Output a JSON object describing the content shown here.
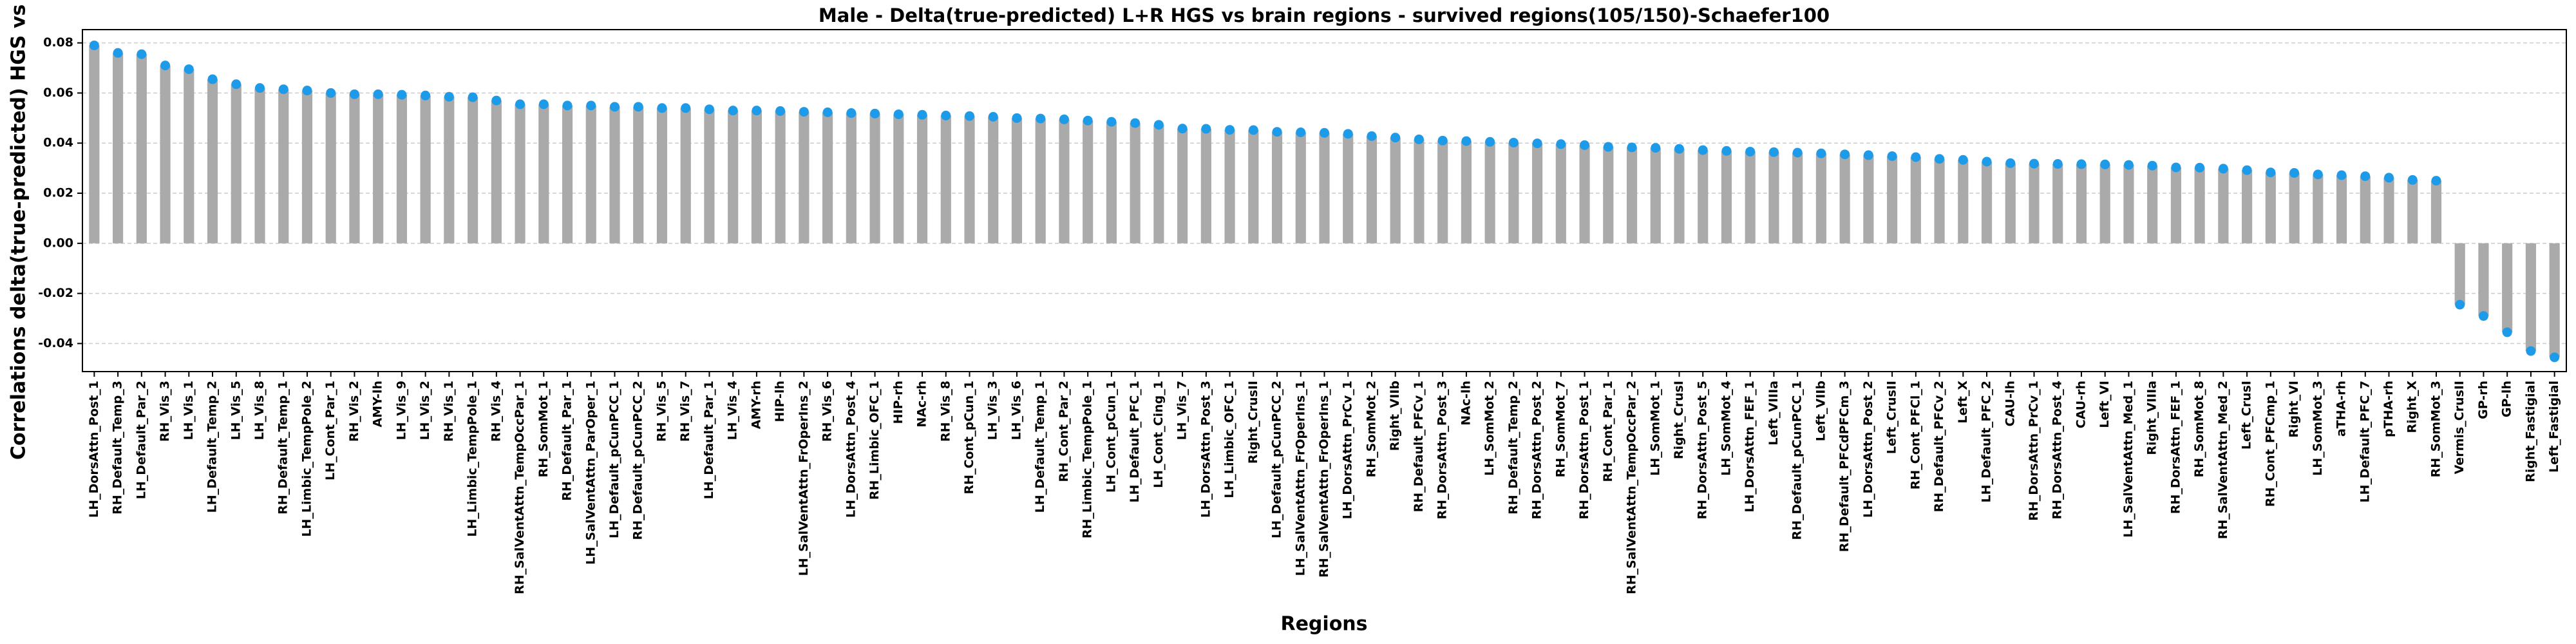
{
  "chart_data": {
    "type": "lollipop",
    "title": "Male - Delta(true-predicted) L+R HGS vs brain regions - survived regions(105/150)-Schaefer100",
    "xlabel": "Regions",
    "ylabel": "Correlations delta(true-predicted) HGS vs brain",
    "categories": [
      "LH_DorsAttn_Post_1",
      "RH_Default_Temp_3",
      "LH_Default_Par_2",
      "RH_Vis_3",
      "LH_Vis_1",
      "LH_Default_Temp_2",
      "LH_Vis_5",
      "LH_Vis_8",
      "RH_Default_Temp_1",
      "LH_Limbic_TempPole_2",
      "LH_Cont_Par_1",
      "RH_Vis_2",
      "AMY-lh",
      "LH_Vis_9",
      "LH_Vis_2",
      "RH_Vis_1",
      "LH_Limbic_TempPole_1",
      "RH_Vis_4",
      "RH_SalVentAttn_TempOccPar_1",
      "RH_SomMot_1",
      "RH_Default_Par_1",
      "LH_SalVentAttn_ParOper_1",
      "LH_Default_pCunPCC_1",
      "RH_Default_pCunPCC_2",
      "RH_Vis_5",
      "RH_Vis_7",
      "LH_Default_Par_1",
      "LH_Vis_4",
      "AMY-rh",
      "HIP-lh",
      "LH_SalVentAttn_FrOperIns_2",
      "RH_Vis_6",
      "LH_DorsAttn_Post_4",
      "RH_Limbic_OFC_1",
      "HIP-rh",
      "NAc-rh",
      "RH_Vis_8",
      "RH_Cont_pCun_1",
      "LH_Vis_3",
      "LH_Vis_6",
      "LH_Default_Temp_1",
      "RH_Cont_Par_2",
      "RH_Limbic_TempPole_1",
      "LH_Cont_pCun_1",
      "LH_Default_PFC_1",
      "LH_Cont_Cing_1",
      "LH_Vis_7",
      "LH_DorsAttn_Post_3",
      "LH_Limbic_OFC_1",
      "Right_CrusII",
      "LH_Default_pCunPCC_2",
      "LH_SalVentAttn_FrOperIns_1",
      "RH_SalVentAttn_FrOperIns_1",
      "LH_DorsAttn_PrCv_1",
      "RH_SomMot_2",
      "Right_VIIb",
      "RH_Default_PFCv_1",
      "RH_DorsAttn_Post_3",
      "NAc-lh",
      "LH_SomMot_2",
      "RH_Default_Temp_2",
      "RH_DorsAttn_Post_2",
      "RH_SomMot_7",
      "RH_DorsAttn_Post_1",
      "RH_Cont_Par_1",
      "RH_SalVentAttn_TempOccPar_2",
      "LH_SomMot_1",
      "Right_CrusI",
      "RH_DorsAttn_Post_5",
      "LH_SomMot_4",
      "LH_DorsAttn_FEF_1",
      "Left_VIIIa",
      "RH_Default_pCunPCC_1",
      "Left_VIIb",
      "RH_Default_PFCdPFCm_3",
      "LH_DorsAttn_Post_2",
      "Left_CrusII",
      "RH_Cont_PFCl_1",
      "RH_Default_PFCv_2",
      "Left_X",
      "LH_Default_PFC_2",
      "CAU-lh",
      "RH_DorsAttn_PrCv_1",
      "RH_DorsAttn_Post_4",
      "CAU-rh",
      "Left_VI",
      "LH_SalVentAttn_Med_1",
      "Right_VIIIa",
      "RH_DorsAttn_FEF_1",
      "RH_SomMot_8",
      "RH_SalVentAttn_Med_2",
      "Left_CrusI",
      "RH_Cont_PFCmp_1",
      "Right_VI",
      "LH_SomMot_3",
      "aTHA-rh",
      "LH_Default_PFC_7",
      "pTHA-rh",
      "Right_X",
      "RH_SomMot_3",
      "Vermis_CrusII",
      "GP-rh",
      "GP-lh",
      "Right_Fastigial",
      "Left_Fastigial"
    ],
    "values": [
      0.079,
      0.076,
      0.0755,
      0.071,
      0.0695,
      0.0655,
      0.0635,
      0.062,
      0.0615,
      0.061,
      0.06,
      0.0595,
      0.0595,
      0.0593,
      0.059,
      0.0585,
      0.0583,
      0.057,
      0.0555,
      0.0555,
      0.055,
      0.055,
      0.0545,
      0.0545,
      0.054,
      0.054,
      0.0535,
      0.053,
      0.053,
      0.0528,
      0.0525,
      0.0523,
      0.052,
      0.0518,
      0.0515,
      0.0513,
      0.051,
      0.0508,
      0.0505,
      0.05,
      0.0498,
      0.0495,
      0.049,
      0.0485,
      0.048,
      0.0473,
      0.0458,
      0.0457,
      0.0453,
      0.0452,
      0.0445,
      0.0443,
      0.0441,
      0.0437,
      0.0428,
      0.0422,
      0.0415,
      0.041,
      0.0408,
      0.0405,
      0.0402,
      0.0399,
      0.0396,
      0.0392,
      0.0385,
      0.0383,
      0.0381,
      0.0377,
      0.0372,
      0.0369,
      0.0366,
      0.0364,
      0.0362,
      0.0359,
      0.0355,
      0.0352,
      0.0348,
      0.0344,
      0.0337,
      0.0333,
      0.0326,
      0.032,
      0.0318,
      0.0317,
      0.0316,
      0.0315,
      0.0313,
      0.031,
      0.0303,
      0.0302,
      0.0298,
      0.0292,
      0.0283,
      0.0281,
      0.0275,
      0.0272,
      0.0268,
      0.0262,
      0.0253,
      0.025,
      -0.0245,
      -0.029,
      -0.0355,
      -0.043,
      -0.0455
    ],
    "color": "#aaaaaa",
    "marker_color": "#1e9be8",
    "ylim": [
      -0.0512,
      0.0853
    ],
    "yticks": [
      -0.04,
      -0.02,
      {
        "value": 0,
        "label": "0.00"
      },
      0.02,
      0.04,
      0.06,
      0.08
    ],
    "grid": true
  }
}
